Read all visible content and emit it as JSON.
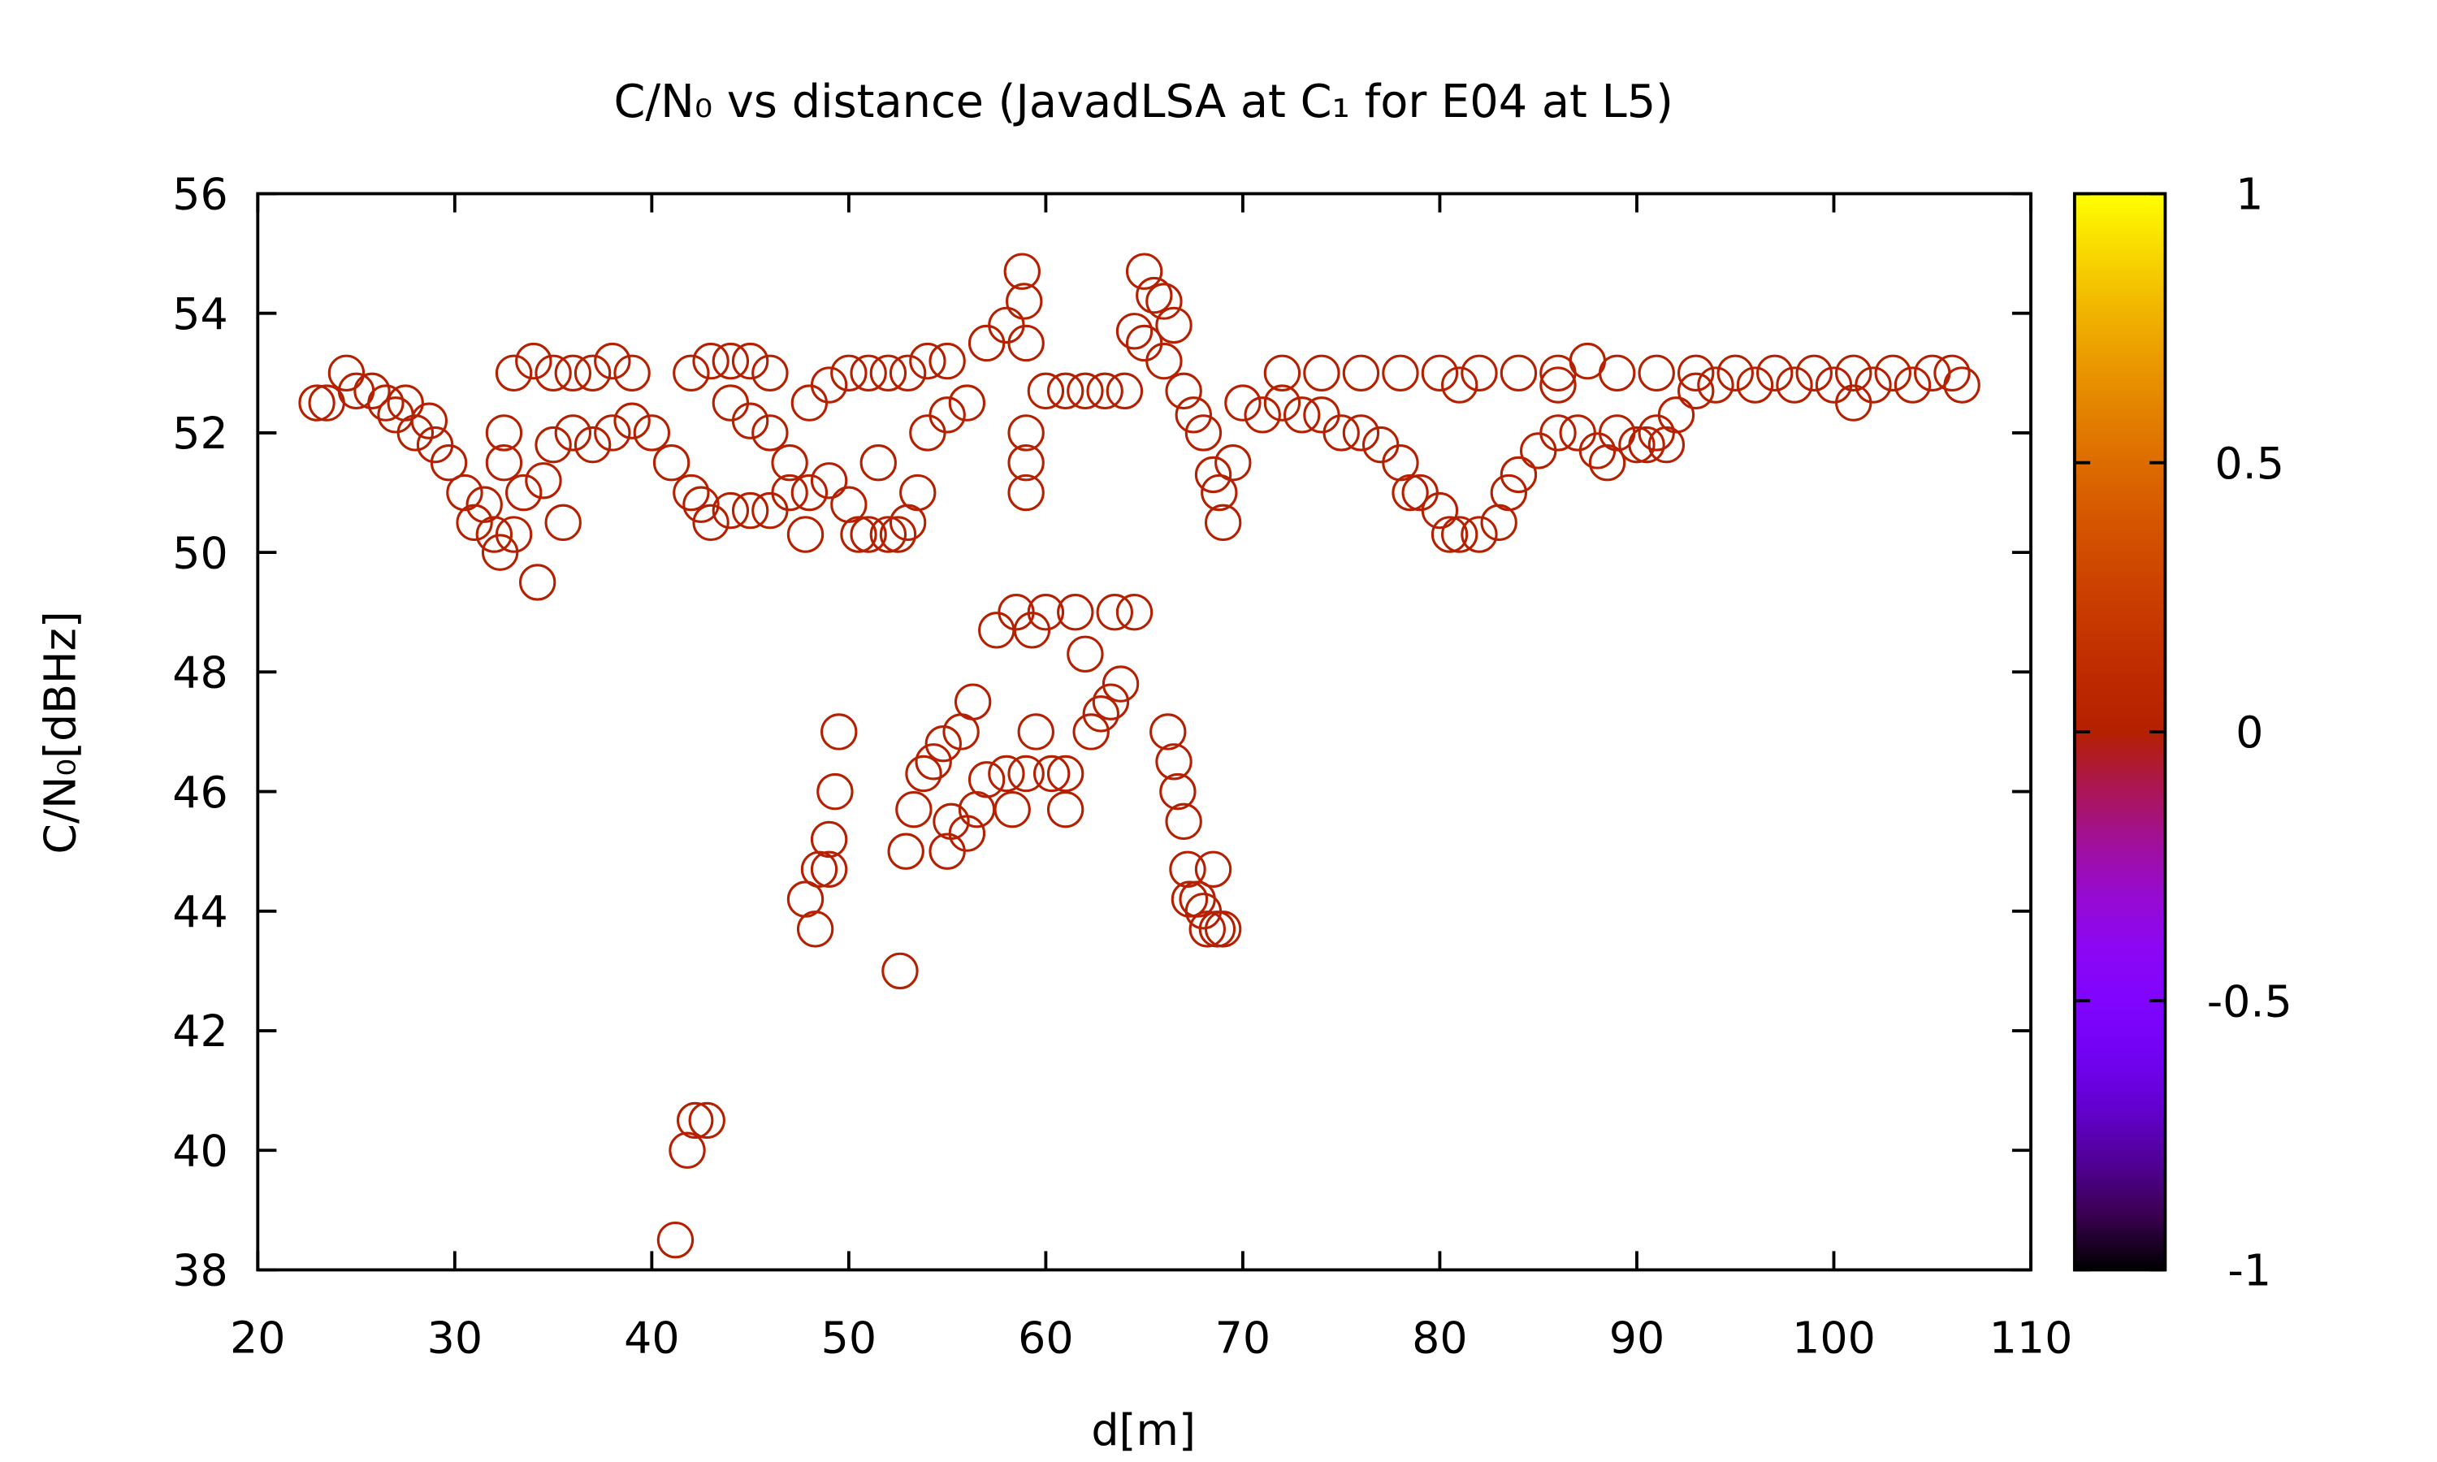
{
  "chart_data": {
    "type": "scatter",
    "title": "C/N₀ vs distance (JavadLSA at C₁ for E04 at L5)",
    "xlabel": "d[m]",
    "ylabel": "C/N₀[dBHz]",
    "color": "#b42000",
    "xlim": [
      20,
      110
    ],
    "xticks": [
      20,
      30,
      40,
      50,
      60,
      70,
      80,
      90,
      100,
      110
    ],
    "ylim": [
      38,
      56
    ],
    "yticks": [
      38,
      40,
      42,
      44,
      46,
      48,
      50,
      52,
      54,
      56
    ],
    "cblim": [
      -1,
      1
    ],
    "cbticks": [
      -1,
      -0.5,
      0,
      0.5,
      1
    ],
    "series": [
      {
        "name": "E04",
        "color": "#b42000",
        "x": [
          23,
          23.5,
          24.5,
          25,
          25.8,
          26.5,
          27,
          27.5,
          28,
          28.7,
          29,
          29.7,
          30.5,
          31,
          31.5,
          32,
          32.3,
          33,
          34.2,
          32.5,
          33,
          34,
          35,
          36,
          37,
          38,
          39,
          32.5,
          33.5,
          34.5,
          35.5,
          35,
          36,
          37,
          38,
          39,
          40,
          41,
          42,
          42.5,
          43,
          44,
          45,
          46,
          47,
          47.8,
          48,
          49,
          50,
          51,
          52,
          53,
          54,
          55,
          42,
          43,
          44,
          45,
          46,
          44,
          45,
          46,
          47,
          48,
          49,
          50,
          50.5,
          51,
          51.5,
          52,
          52.5,
          53,
          53.5,
          54,
          55,
          56,
          57,
          58,
          58.8,
          58.9,
          59,
          59,
          59,
          59,
          60,
          61,
          62,
          63,
          64,
          64.5,
          65,
          65.5,
          66,
          66.5,
          65,
          66,
          67,
          67.5,
          68,
          68.5,
          68.8,
          69,
          69.5,
          70,
          71,
          72,
          73,
          74,
          75,
          76,
          77,
          78,
          78.5,
          79,
          80,
          80.5,
          81,
          82,
          83,
          83.5,
          84,
          85,
          86,
          87,
          88,
          88.5,
          89,
          90,
          90.5,
          91,
          91.5,
          92,
          93,
          72,
          74,
          76,
          78,
          80,
          82,
          84,
          86,
          87.5,
          89,
          91,
          93,
          95,
          97,
          99,
          101,
          103,
          105,
          106,
          94,
          96,
          98,
          100,
          101,
          102,
          104,
          106.5,
          81,
          86,
          41.2,
          41.8,
          42.2,
          42.8,
          47.8,
          48.3,
          48.5,
          49,
          49,
          49.3,
          49.5,
          52.6,
          52.9,
          53.3,
          53.8,
          54.3,
          54.8,
          55,
          55.2,
          55.7,
          56,
          56.3,
          56.5,
          57,
          57.5,
          58,
          58.3,
          58.5,
          59,
          59.5,
          59.3,
          60,
          60.3,
          61,
          61,
          61.5,
          62,
          62.3,
          62.8,
          63.3,
          63.5,
          63.8,
          64.5,
          66.2,
          66.5,
          66.7,
          67,
          67.2,
          67.3,
          67.7,
          68,
          68.2,
          68.5,
          68.7,
          69
        ],
        "values": [
          52.5,
          52.5,
          53,
          52.7,
          52.7,
          52.5,
          52.3,
          52.5,
          52,
          52.2,
          51.8,
          51.5,
          51,
          50.5,
          50.8,
          50.3,
          50,
          50.3,
          49.5,
          52,
          53,
          53.2,
          53,
          53,
          53,
          53.2,
          53,
          51.5,
          51,
          51.2,
          50.5,
          51.8,
          52,
          51.8,
          52,
          52.2,
          52,
          51.5,
          51,
          50.8,
          50.5,
          50.7,
          50.7,
          50.7,
          51,
          50.3,
          52.5,
          52.8,
          53,
          53,
          53,
          53,
          53.2,
          53.2,
          53,
          53.2,
          53.2,
          53.2,
          53,
          52.5,
          52.2,
          52,
          51.5,
          51,
          51.2,
          50.8,
          50.3,
          50.3,
          51.5,
          50.3,
          50.3,
          50.5,
          51,
          52,
          52.3,
          52.5,
          53.5,
          53.8,
          54.7,
          54.2,
          53.5,
          51,
          51.5,
          52,
          52.7,
          52.7,
          52.7,
          52.7,
          52.7,
          53.7,
          54.7,
          54.3,
          54.2,
          53.8,
          53.5,
          53.2,
          52.7,
          52.3,
          52,
          51.3,
          51,
          50.5,
          51.5,
          52.5,
          52.3,
          52.5,
          52.3,
          52.3,
          52,
          52,
          51.8,
          51.5,
          51,
          51,
          50.7,
          50.3,
          50.3,
          50.3,
          50.5,
          51,
          51.3,
          51.7,
          52,
          52,
          51.7,
          51.5,
          52,
          51.8,
          51.8,
          52,
          51.8,
          52.3,
          52.7,
          53,
          53,
          53,
          53,
          53,
          53,
          53,
          53,
          53.2,
          53,
          53,
          53,
          53,
          53,
          53,
          53,
          53,
          53,
          53,
          52.8,
          52.8,
          52.8,
          52.8,
          52.5,
          52.8,
          52.8,
          52.8,
          52.8,
          52.8,
          38.5,
          40,
          40.5,
          40.5,
          44.2,
          43.7,
          44.7,
          44.7,
          45.2,
          46,
          47,
          43,
          45,
          45.7,
          46.3,
          46.5,
          46.8,
          45,
          45.5,
          47,
          45.3,
          47.5,
          45.7,
          46.2,
          48.7,
          46.3,
          45.7,
          49,
          46.3,
          47,
          48.7,
          49,
          46.3,
          45.7,
          46.3,
          49,
          48.3,
          47,
          47.3,
          47.5,
          49,
          47.8,
          49,
          47,
          46.5,
          46,
          45.5,
          44.7,
          44.2,
          44.2,
          44,
          43.7,
          44.7,
          43.7,
          43.7
        ]
      }
    ]
  }
}
